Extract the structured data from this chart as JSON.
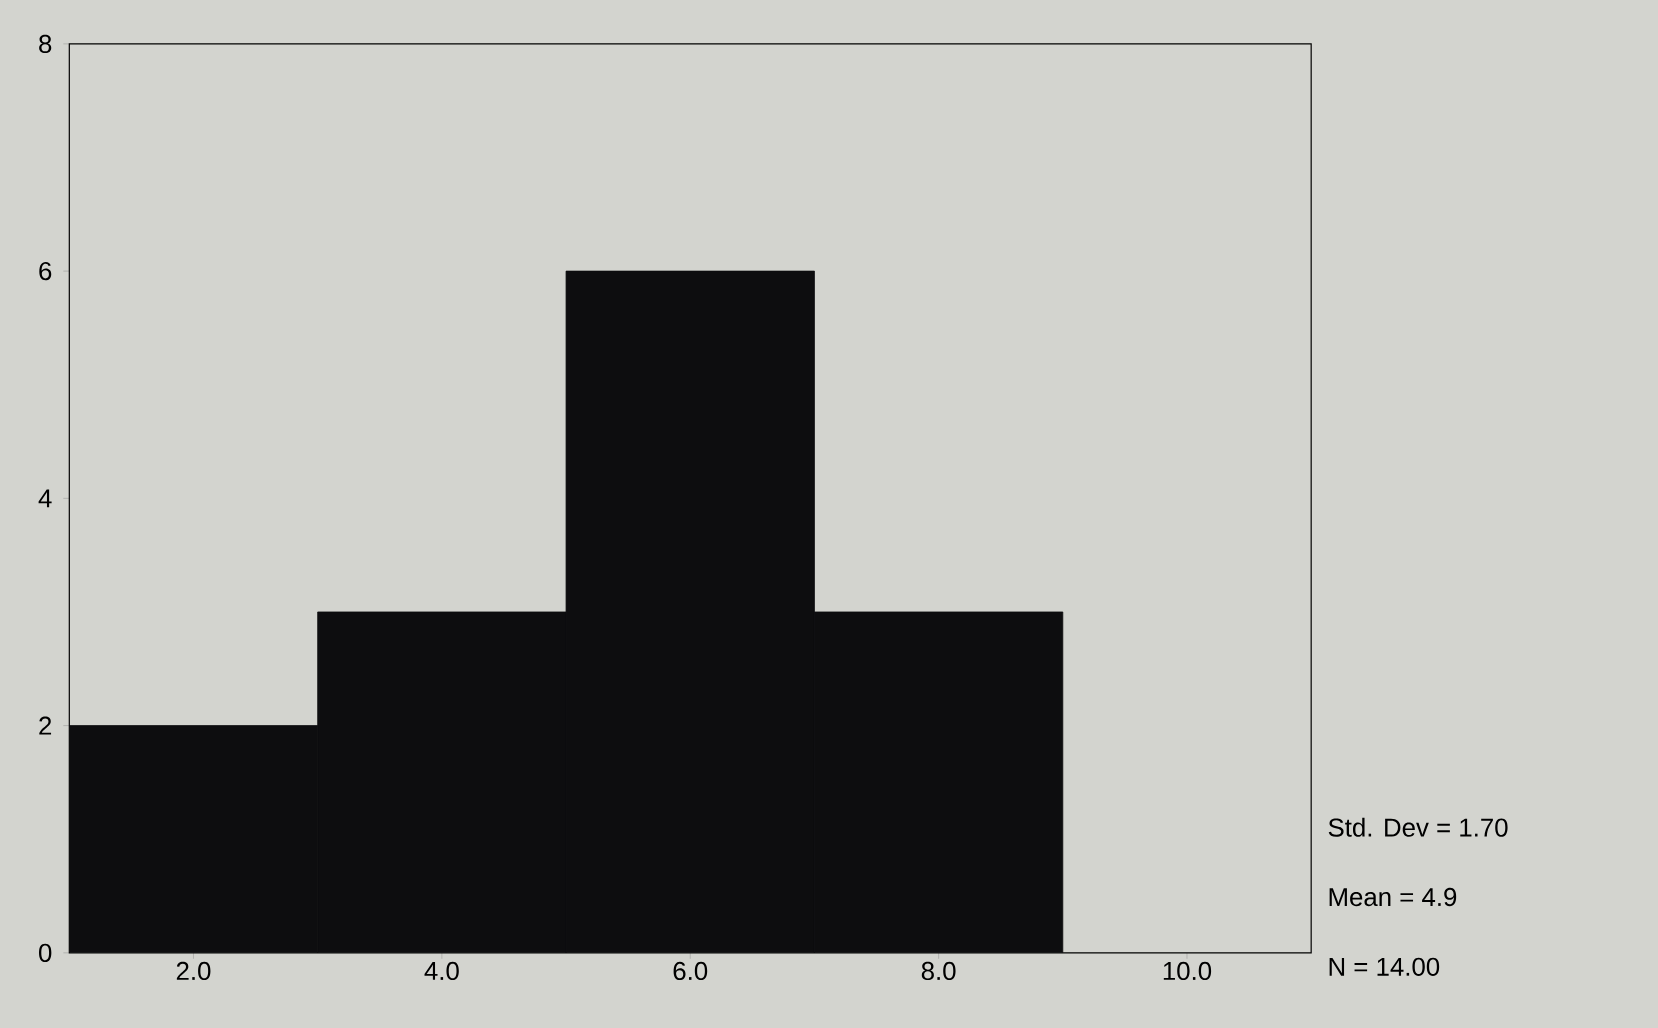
{
  "chart_data": {
    "type": "histogram",
    "bins": [
      1,
      3,
      5,
      7,
      9
    ],
    "values": [
      2,
      3,
      6,
      3
    ],
    "color": "#0d0d0f",
    "xlim": [
      1,
      11
    ],
    "xticks": [
      {
        "value": 2,
        "label": "2.0"
      },
      {
        "value": 4,
        "label": "4.0"
      },
      {
        "value": 6,
        "label": "6.0"
      },
      {
        "value": 8,
        "label": "8.0"
      },
      {
        "value": 10,
        "label": "10.0"
      }
    ],
    "ylim": [
      0,
      8
    ],
    "yticks": [
      0,
      2,
      4,
      6,
      8
    ],
    "annotations": [
      "Std. Dev = 1.70",
      "Mean = 4.9",
      "N = 14.00"
    ]
  }
}
